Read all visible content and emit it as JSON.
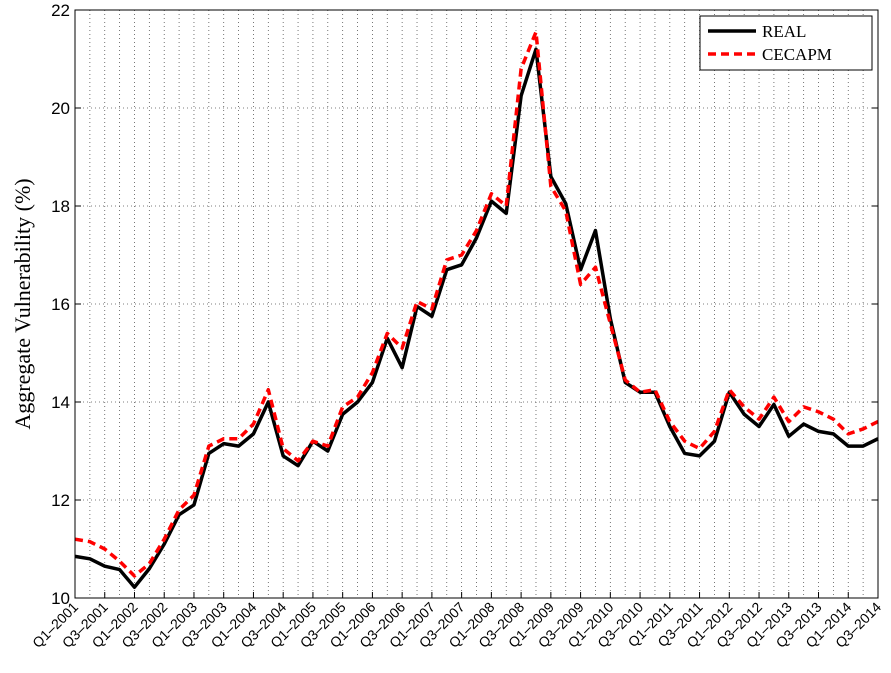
{
  "chart_data": {
    "type": "line",
    "y_label": "Aggregate Vulnerability (%)",
    "categories": [
      "Q1–2001",
      null,
      "Q3–2001",
      null,
      "Q1–2002",
      null,
      "Q3–2002",
      null,
      "Q1–2003",
      null,
      "Q3–2003",
      null,
      "Q1–2004",
      null,
      "Q3–2004",
      null,
      "Q1–2005",
      null,
      "Q3–2005",
      null,
      "Q1–2006",
      null,
      "Q3–2006",
      null,
      "Q1–2007",
      null,
      "Q3–2007",
      null,
      "Q1–2008",
      null,
      "Q3–2008",
      null,
      "Q1–2009",
      null,
      "Q3–2009",
      null,
      "Q1–2010",
      null,
      "Q3–2010",
      null,
      "Q1–2011",
      null,
      "Q3–2011",
      null,
      "Q1–2012",
      null,
      "Q3–2012",
      null,
      "Q1–2013",
      null,
      "Q3–2013",
      null,
      "Q1–2014",
      null,
      "Q3–2014"
    ],
    "series": [
      {
        "name": "REAL",
        "color": "#000000",
        "dash": false,
        "values": [
          10.85,
          10.8,
          10.65,
          10.58,
          10.22,
          10.6,
          11.1,
          11.7,
          11.9,
          12.95,
          13.15,
          13.1,
          13.35,
          14.0,
          12.9,
          12.7,
          13.2,
          13.0,
          13.75,
          14.0,
          14.4,
          15.3,
          14.7,
          15.95,
          15.75,
          16.7,
          16.8,
          17.35,
          18.1,
          17.85,
          20.25,
          21.2,
          18.6,
          18.05,
          16.7,
          17.5,
          15.7,
          14.4,
          14.2,
          14.2,
          13.5,
          12.95,
          12.9,
          13.2,
          14.2,
          13.75,
          13.5,
          13.95,
          13.3,
          13.55,
          13.4,
          13.35,
          13.1,
          13.1,
          13.25
        ]
      },
      {
        "name": "CECAPM",
        "color": "#ff0000",
        "dash": true,
        "values": [
          11.2,
          11.15,
          11.0,
          10.75,
          10.45,
          10.7,
          11.2,
          11.8,
          12.1,
          13.1,
          13.25,
          13.25,
          13.55,
          14.25,
          13.05,
          12.8,
          13.2,
          13.1,
          13.9,
          14.1,
          14.6,
          15.4,
          15.1,
          16.05,
          15.9,
          16.9,
          17.0,
          17.5,
          18.25,
          18.0,
          20.8,
          21.55,
          18.4,
          17.9,
          16.4,
          16.75,
          15.6,
          14.45,
          14.2,
          14.25,
          13.6,
          13.2,
          13.05,
          13.4,
          14.25,
          13.9,
          13.65,
          14.1,
          13.6,
          13.9,
          13.8,
          13.65,
          13.35,
          13.45,
          13.6
        ]
      }
    ],
    "ylim": [
      10,
      22
    ],
    "yticks": [
      10,
      12,
      14,
      16,
      18,
      20,
      22
    ],
    "grid": true,
    "legend": "upper right"
  }
}
